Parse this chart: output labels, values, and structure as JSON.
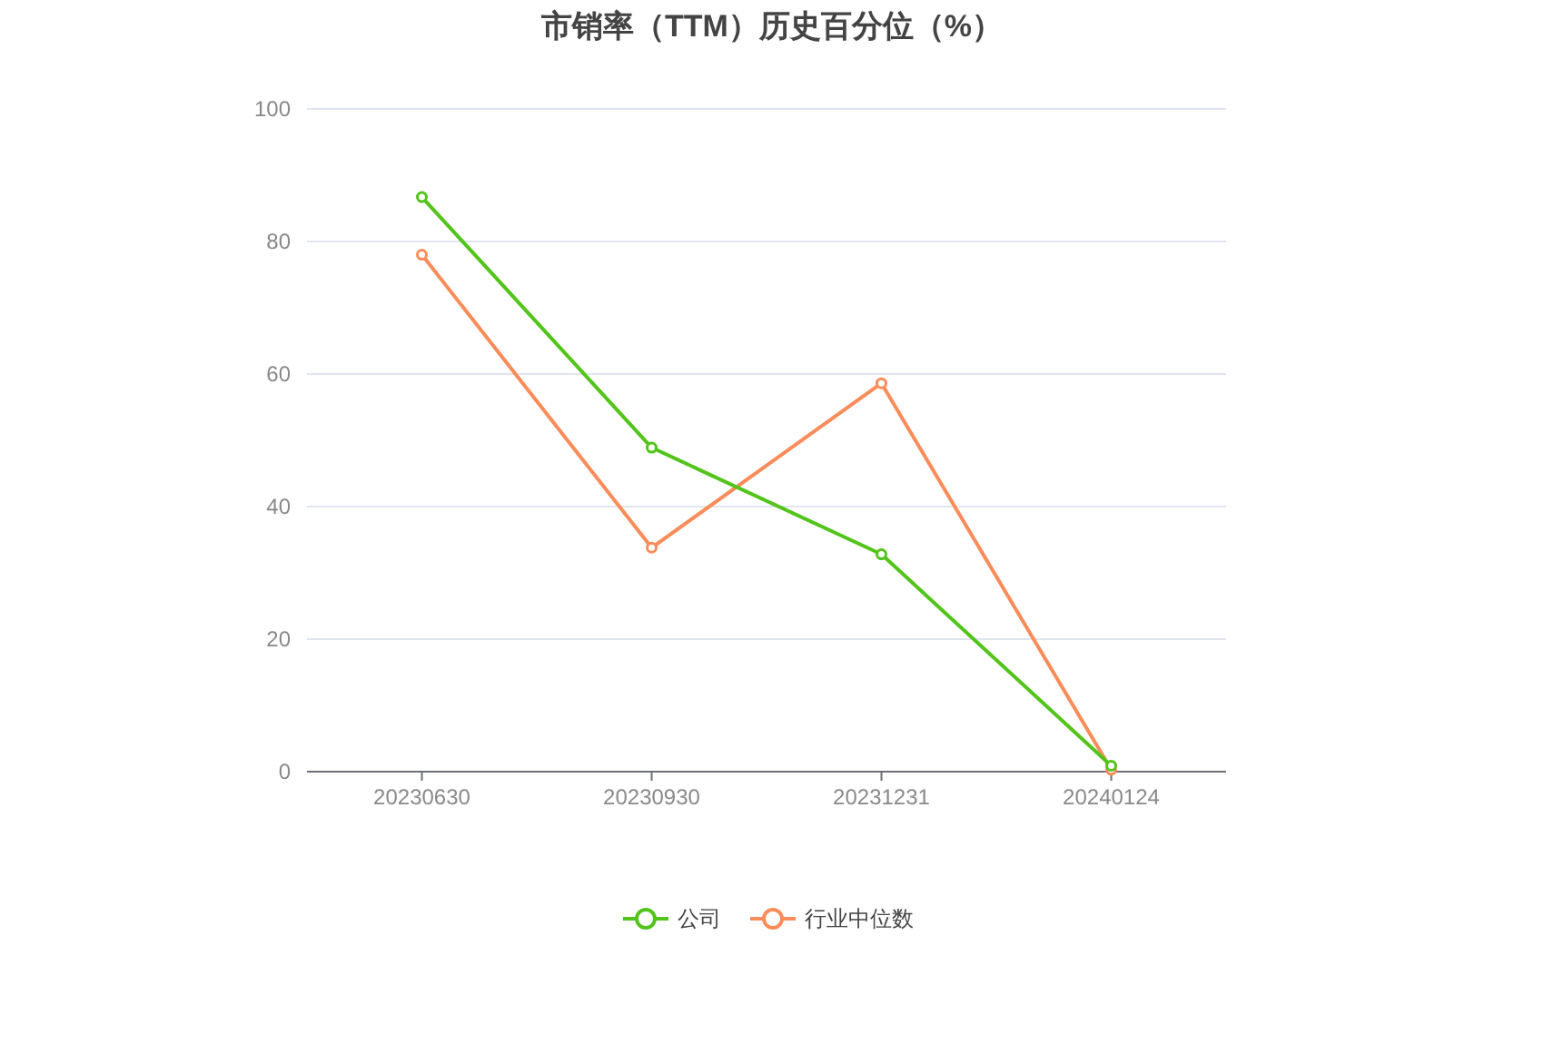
{
  "chart_data": {
    "type": "line",
    "title": "市销率（TTM）历史百分位（%）",
    "categories": [
      "20230630",
      "20230930",
      "20231231",
      "20240124"
    ],
    "series": [
      {
        "name": "公司",
        "color": "#52c41a",
        "values": [
          86.7,
          48.9,
          32.8,
          0.9
        ]
      },
      {
        "name": "行业中位数",
        "color": "#fa8c5a",
        "values": [
          78.0,
          33.8,
          58.6,
          0.3
        ]
      }
    ],
    "ylim": [
      0,
      100
    ],
    "yticks": [
      0,
      20,
      40,
      60,
      80,
      100
    ],
    "grid": "y",
    "legend": "bottom",
    "marker": "circle",
    "line_style": "solid"
  }
}
